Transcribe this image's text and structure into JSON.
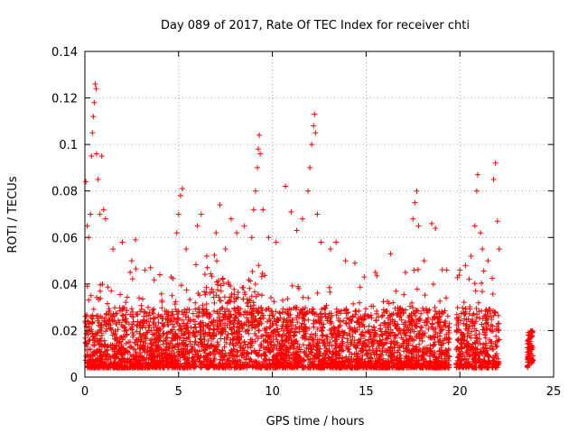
{
  "chart_data": {
    "type": "scatter",
    "title": "Day 089 of 2017, Rate Of TEC Index for receiver chti",
    "xlabel": "GPS time / hours",
    "ylabel": "ROTI / TECUs",
    "xlim": [
      0,
      25
    ],
    "ylim": [
      0,
      0.14
    ],
    "grid": true,
    "marker": "+",
    "color": "#ff0000",
    "x_ticks": [
      0,
      5,
      10,
      15,
      20,
      25
    ],
    "x_tick_labels": [
      "0",
      "5",
      "10",
      "15",
      "20",
      "25"
    ],
    "y_ticks": [
      0,
      0.02,
      0.04,
      0.06,
      0.08,
      0.1,
      0.12,
      0.14
    ],
    "y_tick_labels": [
      "0",
      "0.02",
      "0.04",
      "0.06",
      "0.08",
      "0.1",
      "0.12",
      "0.14"
    ],
    "series": [
      {
        "name": "ROTI",
        "points": [
          [
            0.05,
            0.084
          ],
          [
            0.12,
            0.065
          ],
          [
            0.2,
            0.06
          ],
          [
            0.3,
            0.07
          ],
          [
            0.35,
            0.095
          ],
          [
            0.4,
            0.105
          ],
          [
            0.45,
            0.112
          ],
          [
            0.5,
            0.118
          ],
          [
            0.55,
            0.126
          ],
          [
            0.6,
            0.124
          ],
          [
            0.62,
            0.096
          ],
          [
            0.7,
            0.085
          ],
          [
            0.8,
            0.07
          ],
          [
            0.9,
            0.095
          ],
          [
            1.0,
            0.072
          ],
          [
            1.1,
            0.068
          ],
          [
            1.5,
            0.055
          ],
          [
            2.0,
            0.058
          ],
          [
            2.5,
            0.05
          ],
          [
            2.7,
            0.059
          ],
          [
            3.2,
            0.046
          ],
          [
            3.5,
            0.047
          ],
          [
            4.0,
            0.044
          ],
          [
            4.6,
            0.043
          ],
          [
            4.9,
            0.062
          ],
          [
            5.0,
            0.07
          ],
          [
            5.1,
            0.078
          ],
          [
            5.2,
            0.081
          ],
          [
            5.4,
            0.055
          ],
          [
            6.0,
            0.065
          ],
          [
            6.2,
            0.07
          ],
          [
            6.5,
            0.052
          ],
          [
            7.0,
            0.062
          ],
          [
            7.2,
            0.074
          ],
          [
            7.5,
            0.055
          ],
          [
            7.8,
            0.068
          ],
          [
            8.1,
            0.062
          ],
          [
            8.5,
            0.065
          ],
          [
            8.9,
            0.06
          ],
          [
            9.0,
            0.072
          ],
          [
            9.1,
            0.08
          ],
          [
            9.2,
            0.09
          ],
          [
            9.25,
            0.098
          ],
          [
            9.3,
            0.104
          ],
          [
            9.35,
            0.096
          ],
          [
            9.5,
            0.072
          ],
          [
            9.8,
            0.06
          ],
          [
            10.2,
            0.058
          ],
          [
            10.7,
            0.082
          ],
          [
            11.0,
            0.071
          ],
          [
            11.3,
            0.063
          ],
          [
            11.6,
            0.068
          ],
          [
            11.9,
            0.08
          ],
          [
            12.0,
            0.09
          ],
          [
            12.1,
            0.1
          ],
          [
            12.2,
            0.108
          ],
          [
            12.25,
            0.113
          ],
          [
            12.3,
            0.105
          ],
          [
            12.4,
            0.07
          ],
          [
            12.6,
            0.058
          ],
          [
            13.1,
            0.055
          ],
          [
            13.4,
            0.058
          ],
          [
            13.9,
            0.05
          ],
          [
            14.4,
            0.049
          ],
          [
            14.9,
            0.043
          ],
          [
            15.5,
            0.045
          ],
          [
            16.3,
            0.053
          ],
          [
            17.1,
            0.045
          ],
          [
            17.5,
            0.068
          ],
          [
            17.6,
            0.075
          ],
          [
            17.7,
            0.08
          ],
          [
            17.8,
            0.065
          ],
          [
            18.1,
            0.05
          ],
          [
            18.5,
            0.066
          ],
          [
            18.7,
            0.064
          ],
          [
            19.3,
            0.046
          ],
          [
            20.0,
            0.046
          ],
          [
            20.3,
            0.048
          ],
          [
            20.6,
            0.052
          ],
          [
            20.8,
            0.065
          ],
          [
            20.9,
            0.08
          ],
          [
            20.95,
            0.087
          ],
          [
            21.1,
            0.062
          ],
          [
            21.2,
            0.055
          ],
          [
            21.5,
            0.05
          ],
          [
            21.8,
            0.085
          ],
          [
            21.9,
            0.092
          ],
          [
            22.0,
            0.067
          ],
          [
            22.1,
            0.055
          ]
        ]
      }
    ]
  }
}
